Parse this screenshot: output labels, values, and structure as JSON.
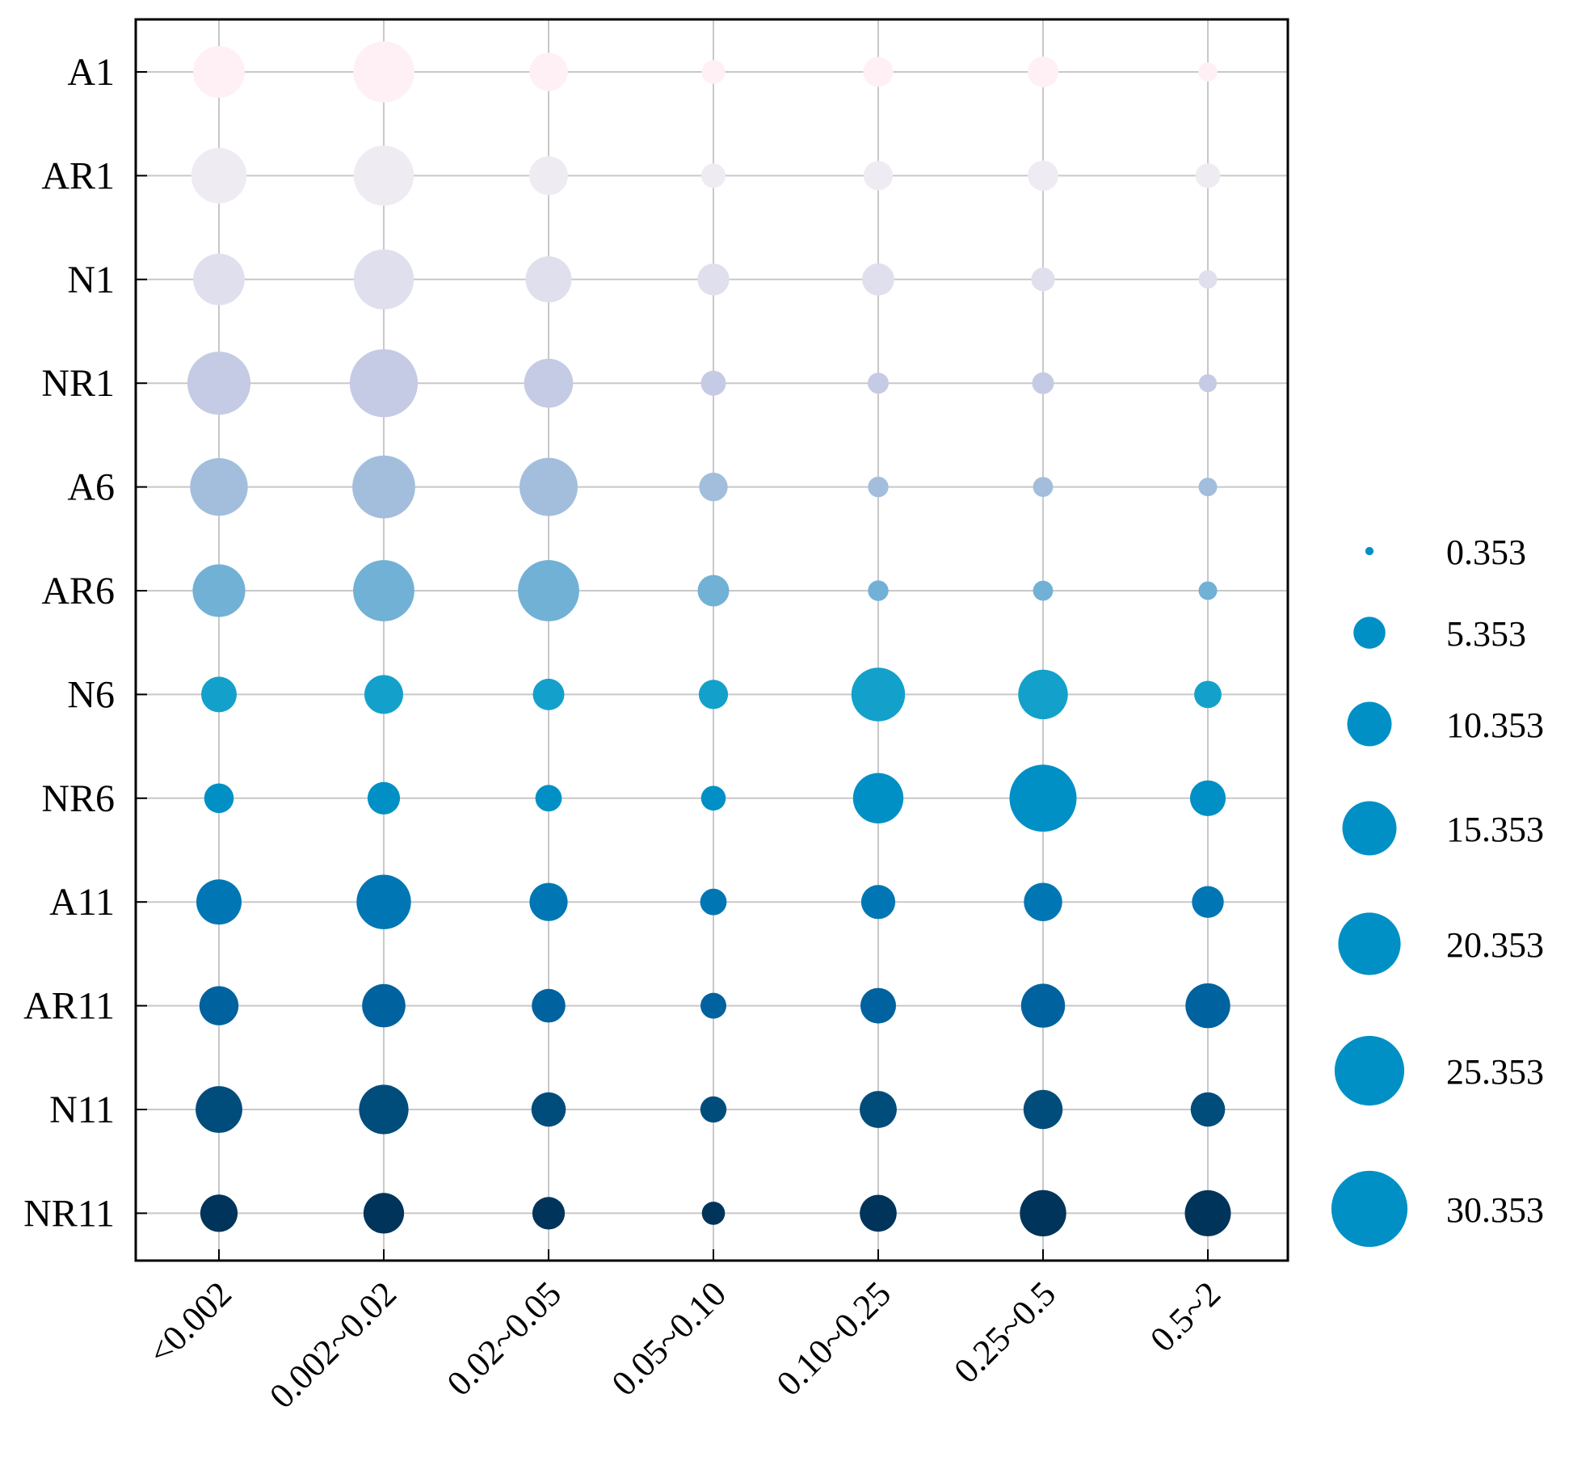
{
  "chart_data": {
    "type": "scatter",
    "subtype": "bubble-matrix",
    "title": "",
    "xlabel": "",
    "ylabel": "",
    "grid": true,
    "legend_position": "right",
    "categories": [
      "<0.002",
      "0.002~0.02",
      "0.02~0.05",
      "0.05~0.10",
      "0.10~0.25",
      "0.25~0.5",
      "0.5~2"
    ],
    "rows": [
      "A1",
      "AR1",
      "N1",
      "NR1",
      "A6",
      "AR6",
      "N6",
      "NR6",
      "A11",
      "AR11",
      "N11",
      "NR11"
    ],
    "row_colors": [
      "#fff0f5",
      "#efebf3",
      "#e0dfee",
      "#c5cbe4",
      "#a2bedc",
      "#72b1d6",
      "#13a1cb",
      "#0090c5",
      "#0077b4",
      "#00629e",
      "#004d7c",
      "#00345a"
    ],
    "values": [
      [
        14.0,
        19.7,
        7.7,
        2.9,
        4.7,
        5.0,
        1.9
      ],
      [
        16.1,
        18.9,
        7.9,
        3.1,
        4.5,
        4.9,
        3.2
      ],
      [
        13.9,
        18.9,
        11.1,
        5.3,
        5.4,
        2.9,
        1.8
      ],
      [
        20.9,
        24.3,
        12.6,
        3.3,
        2.3,
        2.5,
        1.7
      ],
      [
        17.4,
        20.7,
        17.7,
        4.3,
        2.2,
        2.1,
        1.8
      ],
      [
        14.5,
        19.7,
        19.7,
        5.2,
        2.2,
        2.1,
        1.8
      ],
      [
        6.6,
        7.9,
        5.2,
        4.5,
        15.1,
        12.9,
        3.9
      ],
      [
        4.6,
        5.5,
        3.7,
        3.2,
        13.3,
        23.6,
        6.7
      ],
      [
        10.7,
        15.5,
        7.6,
        3.7,
        6.1,
        7.7,
        5.3
      ],
      [
        8.0,
        9.8,
        5.9,
        3.5,
        6.6,
        10.1,
        10.5
      ],
      [
        11.4,
        12.8,
        6.2,
        3.6,
        7.2,
        8.0,
        6.2
      ],
      [
        7.3,
        8.6,
        5.5,
        2.8,
        7.1,
        11.3,
        11.1
      ]
    ],
    "legend": {
      "color": "#0090c5",
      "entries": [
        "0.353",
        "5.353",
        "10.353",
        "15.353",
        "20.353",
        "25.353",
        "30.353"
      ],
      "values": [
        0.353,
        5.353,
        10.353,
        15.353,
        20.353,
        25.353,
        30.353
      ]
    },
    "grid_color": "#c8c8c8"
  }
}
